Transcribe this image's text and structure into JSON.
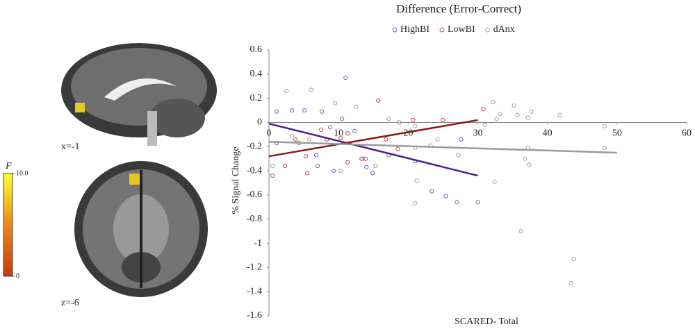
{
  "chart_data": {
    "type": "scatter",
    "title": "Difference (Error-Correct)",
    "x_label": "SCARED- Total",
    "y_label": "% Signal Change",
    "xlim": [
      0,
      60
    ],
    "xticks": [
      0,
      10,
      20,
      30,
      40,
      50,
      60
    ],
    "ylim": [
      -1.6,
      0.6
    ],
    "yticks": [
      -1.6,
      -1.4,
      -1.2,
      -1,
      -0.8,
      -0.6,
      -0.4,
      -0.2,
      0,
      0.2,
      0.4,
      0.6
    ],
    "legend": "top",
    "series": [
      {
        "name": "HighBI",
        "color": "#7b5fae",
        "x": [
          1.1,
          3.3,
          5.1,
          7.6,
          10.5,
          11,
          1.1,
          4.3,
          6.8,
          8.8,
          12.3,
          13.5,
          14.9,
          14,
          17.2,
          21,
          23.4,
          25.4,
          27,
          30,
          27.6,
          9.3,
          7
        ],
        "values": [
          0.09,
          0.1,
          0.1,
          0.09,
          0.03,
          0.37,
          -0.17,
          -0.17,
          -0.27,
          -0.04,
          -0.07,
          -0.3,
          -0.42,
          -0.37,
          -0.27,
          -0.32,
          -0.57,
          -0.61,
          -0.66,
          -0.66,
          -0.14,
          -0.4,
          -0.36
        ],
        "fit_x": [
          0,
          30
        ],
        "fit_y": [
          -0.01,
          -0.44
        ],
        "fit_color": "#4b1f8c"
      },
      {
        "name": "LowBI",
        "color": "#b9504e",
        "x": [
          0.5,
          3.8,
          5.3,
          5.5,
          7.5,
          10.3,
          13.3,
          13.9,
          15.7,
          18.5,
          18.7,
          20.7,
          25,
          30.8,
          2.3,
          8.3,
          11.3,
          16.8,
          11.3
        ],
        "values": [
          -0.44,
          -0.14,
          -0.28,
          -0.42,
          -0.06,
          -0.13,
          -0.3,
          -0.3,
          0.18,
          -0.22,
          0,
          0.02,
          0.02,
          0.11,
          -0.36,
          -0.14,
          -0.09,
          -0.14,
          -0.33
        ],
        "fit_x": [
          0,
          30
        ],
        "fit_y": [
          -0.28,
          0.02
        ],
        "fit_color": "#8b1a14"
      },
      {
        "name": "dAnx",
        "color": "#a3a3a3",
        "x": [
          2.5,
          6.1,
          9.5,
          12.5,
          0.5,
          3.3,
          5.8,
          10.3,
          21,
          21,
          21.2,
          21,
          24.2,
          27.2,
          31,
          32.2,
          32.7,
          33.2,
          32.4,
          35.2,
          35.7,
          37.2,
          37.7,
          41.8,
          37.2,
          36.8,
          37.4,
          36.2,
          43.8,
          43.4,
          48.2,
          48.2,
          15.3,
          17.2,
          23.2
        ],
        "values": [
          0.26,
          0.27,
          0.16,
          0.13,
          -0.36,
          -0.11,
          -0.14,
          -0.4,
          -0.03,
          -0.21,
          -0.48,
          -0.67,
          -0.14,
          -0.27,
          -0.02,
          0.17,
          0.03,
          0.07,
          -0.49,
          0.14,
          0.06,
          0.04,
          0.09,
          0.06,
          -0.21,
          -0.3,
          -0.35,
          -0.9,
          -1.13,
          -1.33,
          -0.03,
          -0.21,
          -0.36,
          0.03,
          -0.19
        ],
        "fit_x": [
          0,
          50
        ],
        "fit_y": [
          -0.16,
          -0.25
        ],
        "fit_color": "#9a9a9a"
      }
    ]
  },
  "brain": {
    "sagittal_label": "x=-1",
    "axial_label": "z=-6",
    "colorbar": {
      "title": "F",
      "ticks": [
        {
          "value": 10,
          "label": "10.0"
        },
        0
      ]
    }
  }
}
